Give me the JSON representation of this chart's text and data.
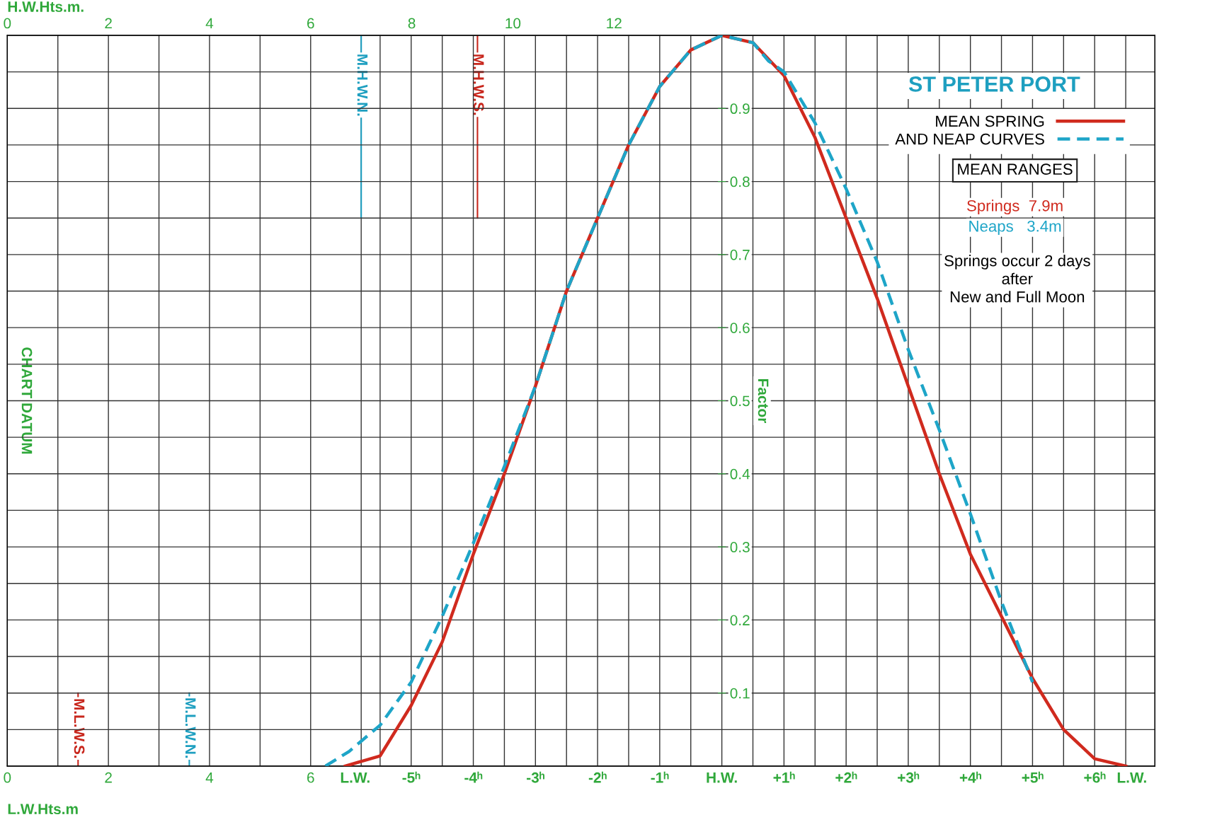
{
  "chart_data": [
    {
      "type": "line",
      "xlabel": "L.W.Hts.m",
      "x2label": "H.W.Hts.m.",
      "xlim": [
        0,
        22.7
      ],
      "xticks": [
        0,
        2,
        4,
        6
      ],
      "x2lim": [
        0,
        22.7
      ],
      "x2ticks": [
        0,
        2,
        4,
        6,
        8,
        10,
        12
      ],
      "ylim": [
        0,
        1.0
      ],
      "tick_labels": "x",
      "grid": true,
      "ref_lines": [
        {
          "axis": "x2",
          "value": 9.3,
          "label": "M.H.W.S.",
          "color": "#c8261c"
        },
        {
          "axis": "x2",
          "value": 7.0,
          "label": "M.H.W.N.",
          "color": "#1e9fc0"
        },
        {
          "axis": "x",
          "value": 1.4,
          "label": "M.L.W.S.",
          "color": "#c8261c"
        },
        {
          "axis": "x",
          "value": 3.6,
          "label": "M.L.W.N.",
          "color": "#1e9fc0"
        }
      ],
      "annotations": [
        "CHART DATUM"
      ]
    },
    {
      "type": "line",
      "title": "ST PETER PORT",
      "ylabel": "Factor",
      "xlim": [
        -11.5,
        6.97
      ],
      "xticks": [
        {
          "value": -5.9,
          "label": "L.W."
        },
        {
          "value": -5,
          "label": "-5ʰ"
        },
        {
          "value": -4,
          "label": "-4ʰ"
        },
        {
          "value": -3,
          "label": "-3ʰ"
        },
        {
          "value": -2,
          "label": "-2ʰ"
        },
        {
          "value": -1,
          "label": "-1ʰ"
        },
        {
          "value": 0,
          "label": "H.W."
        },
        {
          "value": 1,
          "label": "+1ʰ"
        },
        {
          "value": 2,
          "label": "+2ʰ"
        },
        {
          "value": 3,
          "label": "+3ʰ"
        },
        {
          "value": 4,
          "label": "+4ʰ"
        },
        {
          "value": 5,
          "label": "+5ʰ"
        },
        {
          "value": 6,
          "label": "+6ʰ"
        },
        {
          "value": 6.6,
          "label": "L.W."
        }
      ],
      "ylim": [
        0,
        1.0
      ],
      "yticks": [
        0.1,
        0.2,
        0.3,
        0.4,
        0.5,
        0.6,
        0.7,
        0.8,
        0.9
      ],
      "grid": true,
      "legend": "top right",
      "series": [
        {
          "name": "MEAN SPRING",
          "color": "#d02a1e",
          "line_style": "solid",
          "x": [
            -6.06,
            -5.5,
            -5.0,
            -4.5,
            -4.0,
            -3.5,
            -3.0,
            -2.5,
            -2.0,
            -1.5,
            -1.0,
            -0.5,
            0,
            0.5,
            1.0,
            1.5,
            2.0,
            2.5,
            3.0,
            3.5,
            4.0,
            4.5,
            5.0,
            5.5,
            6.0,
            6.5
          ],
          "values": [
            0,
            0.014,
            0.083,
            0.17,
            0.29,
            0.4,
            0.52,
            0.65,
            0.75,
            0.85,
            0.93,
            0.98,
            1.0,
            0.99,
            0.945,
            0.86,
            0.75,
            0.64,
            0.52,
            0.4,
            0.29,
            0.205,
            0.12,
            0.05,
            0.01,
            0
          ]
        },
        {
          "name": "AND NEAP CURVES",
          "color": "#1ea5c8",
          "line_style": "dashed",
          "x": [
            -6.38,
            -6.0,
            -5.5,
            -5.0,
            -4.5,
            -4.0,
            -3.5,
            -3.0,
            -2.5,
            -2.0,
            -1.5,
            -1.0,
            -0.5,
            0,
            0.5,
            0.75,
            1.0,
            1.5,
            2.0,
            2.5,
            3.0,
            3.5,
            4.0,
            4.5,
            5.0
          ],
          "values": [
            0,
            0.02,
            0.056,
            0.115,
            0.205,
            0.305,
            0.41,
            0.52,
            0.65,
            0.75,
            0.85,
            0.93,
            0.98,
            1.0,
            0.99,
            0.965,
            0.95,
            0.88,
            0.79,
            0.69,
            0.57,
            0.46,
            0.345,
            0.225,
            0.115
          ]
        }
      ],
      "annotations": [
        "MEAN RANGES",
        "Springs  7.9m",
        "Neaps   3.4m",
        "Springs occur 2 days\nafter\nNew and Full Moon"
      ]
    }
  ]
}
